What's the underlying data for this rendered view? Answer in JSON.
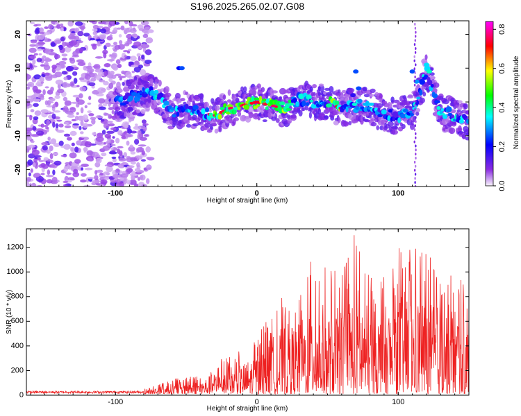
{
  "title": "S196.2025.265.02.07.G08",
  "chart_data": [
    {
      "type": "heatmap",
      "xlabel": "Height of straight line (km)",
      "ylabel": "Frequency (Hz)",
      "xlim": [
        -163,
        150
      ],
      "ylim": [
        -25,
        24
      ],
      "xticks": [
        -100,
        0,
        100
      ],
      "yticks": [
        -20,
        -10,
        0,
        10,
        20
      ],
      "colorbar": {
        "label": "Normalized spectral amplitude",
        "range": [
          0,
          0.84
        ],
        "ticks": [
          "0.0",
          "0.2",
          "0.4",
          "0.6",
          "0.8"
        ],
        "tick_values": [
          0,
          0.2,
          0.4,
          0.6,
          0.8
        ],
        "colors": [
          "#f4eef8",
          "#8a2be2",
          "#0000ff",
          "#00ffff",
          "#00ff00",
          "#ffff00",
          "#ff0000",
          "#ff00ff"
        ]
      },
      "ridge": {
        "description": "dominant frequency track vs height",
        "x": [
          -100,
          -90,
          -80,
          -70,
          -60,
          -50,
          -40,
          -30,
          -20,
          -10,
          0,
          10,
          20,
          30,
          40,
          50,
          60,
          70,
          80,
          90,
          100,
          110,
          120,
          130,
          140,
          150
        ],
        "y": [
          0,
          1,
          3,
          2,
          -3,
          -2,
          -3,
          -4,
          -2,
          -1,
          0,
          -1,
          -2,
          1,
          0,
          0,
          -2,
          -1,
          -1,
          -4,
          -4,
          -3,
          9,
          -3,
          -4,
          -6
        ]
      }
    },
    {
      "type": "line",
      "xlabel": "Height of straight line (km)",
      "ylabel": "SNR (10 * v/v)",
      "xlim": [
        -163,
        150
      ],
      "ylim": [
        0,
        1350
      ],
      "xticks": [
        -100,
        0,
        100
      ],
      "yticks": [
        0,
        200,
        400,
        600,
        800,
        1000,
        1200
      ],
      "series": [
        {
          "name": "SNR",
          "color": "#ee2222",
          "x": [
            -163,
            -100,
            -80,
            -70,
            -60,
            -50,
            -40,
            -30,
            -20,
            -10,
            0,
            10,
            20,
            30,
            40,
            50,
            60,
            70,
            80,
            90,
            100,
            110,
            120,
            130,
            140,
            150
          ],
          "y": [
            30,
            30,
            40,
            80,
            120,
            150,
            150,
            250,
            330,
            350,
            480,
            650,
            820,
            820,
            1130,
            1010,
            1000,
            1350,
            960,
            1000,
            1200,
            1200,
            1150,
            1000,
            1080,
            760
          ]
        }
      ]
    }
  ]
}
